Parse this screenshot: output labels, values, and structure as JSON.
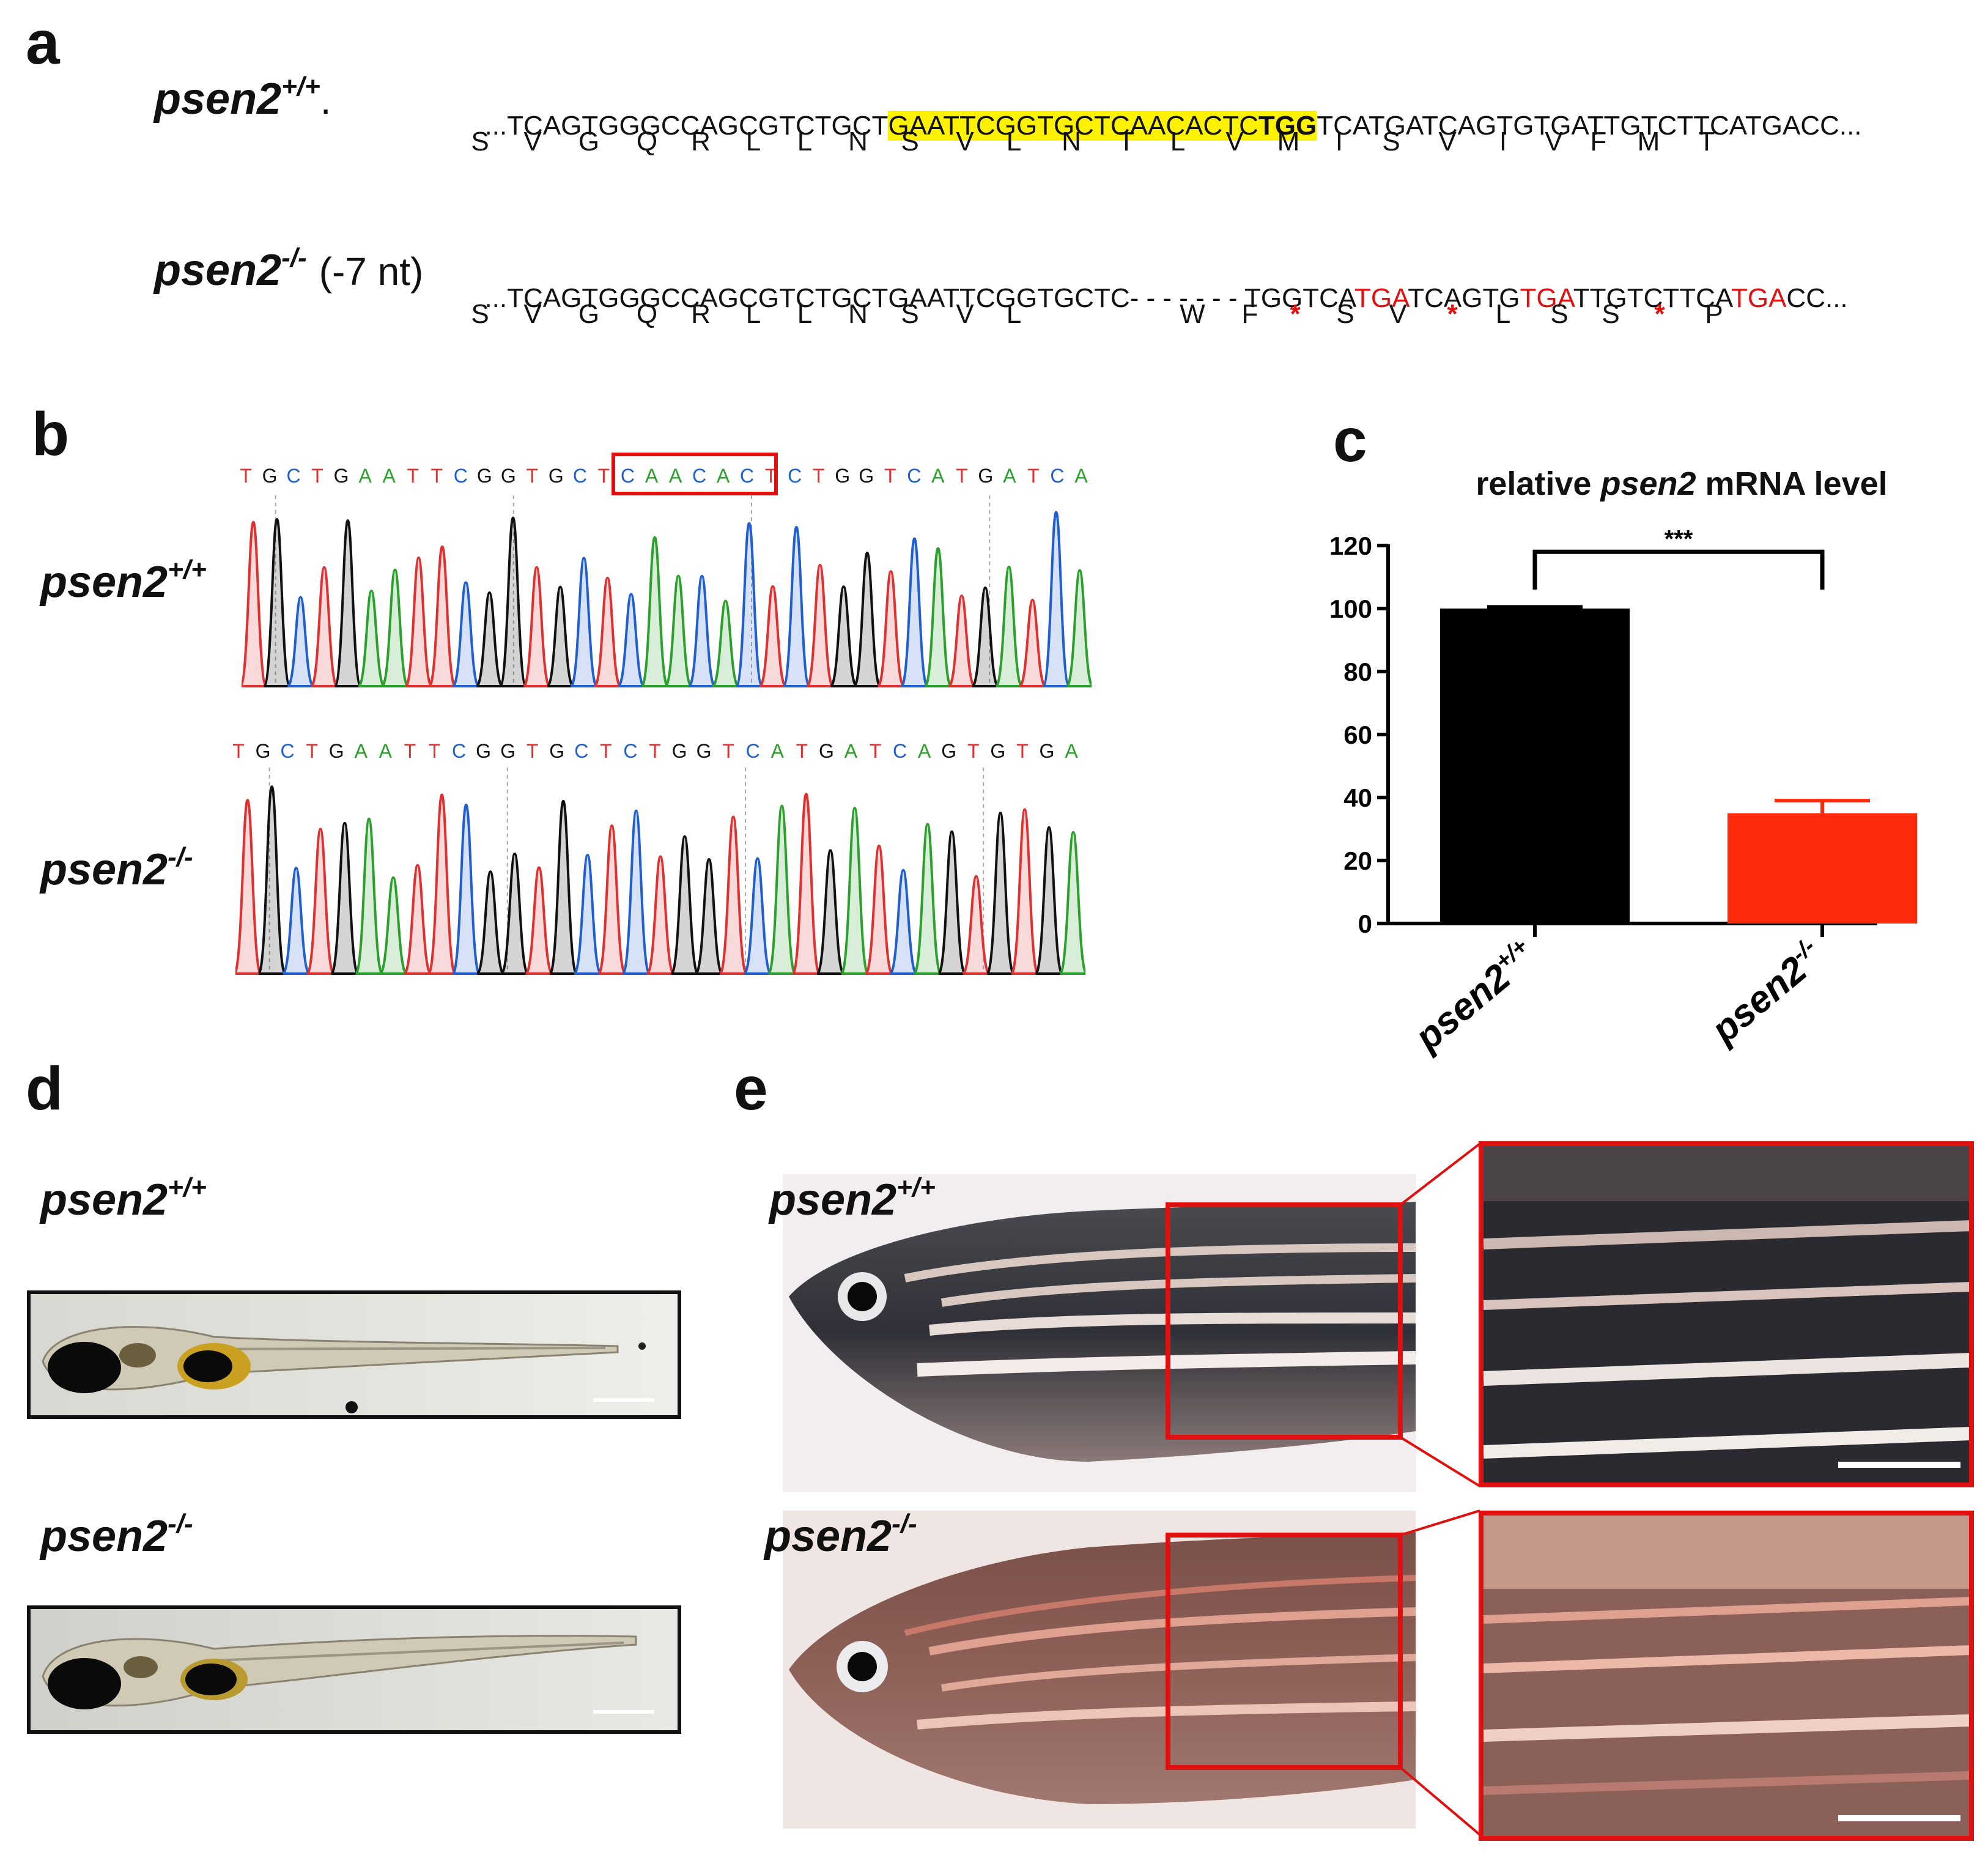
{
  "panels": {
    "a": "a",
    "b": "b",
    "c": "c",
    "d": "d",
    "e": "e"
  },
  "panel_a": {
    "wt": {
      "genotype": "psen2",
      "sup": "+/+",
      "suffix": ".",
      "seq_prefix": "...TCAGTGGGCCAGCGTCTGCT",
      "seq_highlight": "GAATTCGGTGCTCAACACTC",
      "seq_pam": "TGG",
      "seq_suffix": "TCATGATCAGTGTGATTGTCTTCATGACC...",
      "aa": [
        "S",
        "V",
        "G",
        "Q",
        "R",
        "L",
        "L",
        "N",
        "S",
        "V",
        "L",
        "N",
        "T",
        "L",
        "V",
        "M",
        "I",
        "S",
        "V",
        "I",
        "V",
        "F",
        "M",
        "T"
      ]
    },
    "mut": {
      "genotype": "psen2",
      "sup": "-/-",
      "note": "(-7 nt)",
      "seq_prefix": "...TCAGTGGGCCAGCGTCTGCTGAATTCGGTGCTC",
      "seq_gap": "- - - - - - -",
      "seq_parts": [
        "TGGTCA",
        "TGA",
        "TCAGTG",
        "TGA",
        "TTGTCTTCA",
        "TGA",
        "CC..."
      ],
      "aa_left": [
        "S",
        "V",
        "G",
        "Q",
        "R",
        "L",
        "L",
        "N",
        "S",
        "V",
        "L"
      ],
      "aa_right": [
        "W",
        "F",
        "*",
        "S",
        "V",
        "*",
        "L",
        "S",
        "S",
        "*",
        "P"
      ]
    }
  },
  "panel_b": {
    "wt_label": {
      "genotype": "psen2",
      "sup": "+/+"
    },
    "mut_label": {
      "genotype": "psen2",
      "sup": "-/-"
    },
    "wt_bases": "TGCTGAATTCGGTGCTCAACACTCTGGTCATGATCA",
    "mut_bases": "TGCTGAATTCGGTGCTCTGGTCATGATCAGTGTGA",
    "base_colors": {
      "A": "#2ca02c",
      "C": "#1f5fd0",
      "G": "#111111",
      "T": "#e03030"
    }
  },
  "chart_data": {
    "type": "bar",
    "title_prefix": "relative ",
    "title_italic": "psen2",
    "title_suffix": " mRNA level",
    "categories": [
      {
        "genotype": "psen2",
        "sup": "+/+"
      },
      {
        "genotype": "psen2",
        "sup": "-/-"
      }
    ],
    "values": [
      100,
      35
    ],
    "errors": [
      0.5,
      4
    ],
    "colors": [
      "#000000",
      "#ff2a0a"
    ],
    "ylim": [
      0,
      120
    ],
    "yticks": [
      0,
      20,
      40,
      60,
      80,
      100,
      120
    ],
    "significance": "***"
  },
  "panel_d": {
    "wt_label": {
      "genotype": "psen2",
      "sup": "+/+"
    },
    "mut_label": {
      "genotype": "psen2",
      "sup": "-/-"
    }
  },
  "panel_e": {
    "wt_label": {
      "genotype": "psen2",
      "sup": "+/+"
    },
    "mut_label": {
      "genotype": "psen2",
      "sup": "-/-"
    },
    "box_color": "#e01010"
  }
}
